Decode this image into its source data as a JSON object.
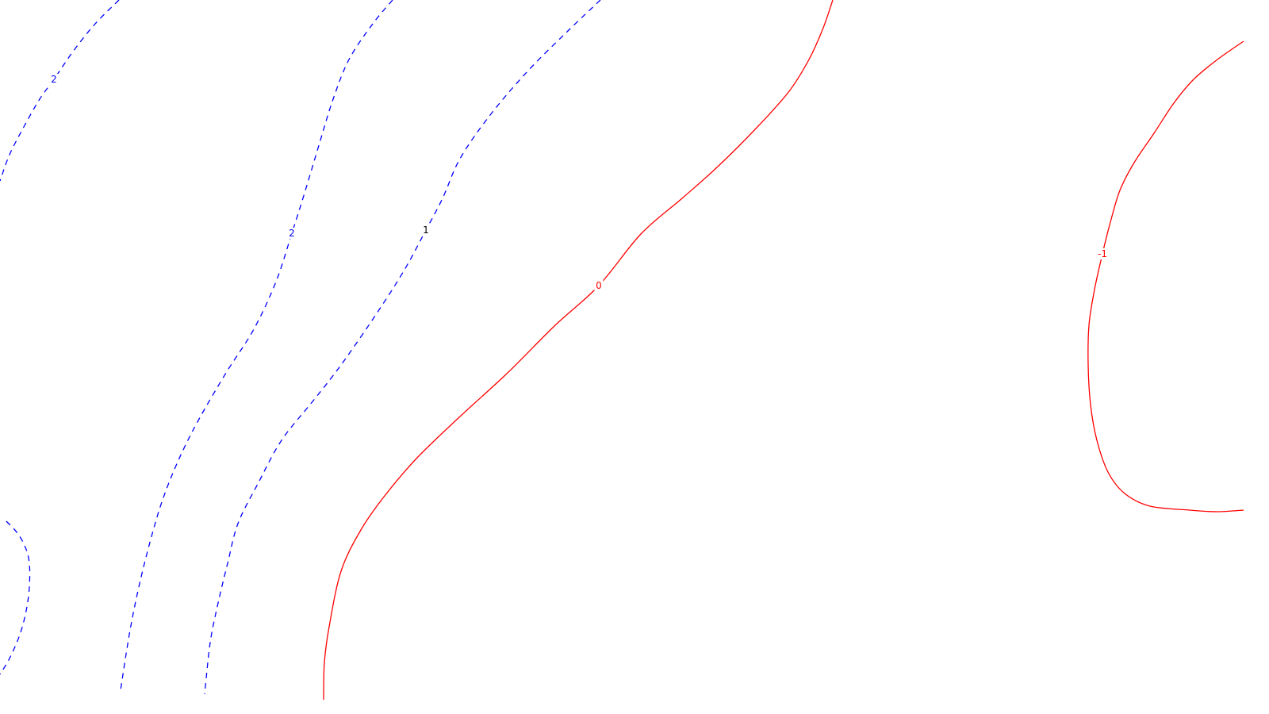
{
  "chart_data": {
    "type": "contour",
    "title": "",
    "xlabel": "",
    "ylabel": "",
    "grid": false,
    "legend": "none",
    "colors": {
      "positive": "#0000ff",
      "zero": "#ff0000",
      "negative": "#ff0000",
      "label_default": "#000000"
    },
    "levels": [
      {
        "level": 2,
        "label": "2",
        "style": "dashed",
        "color": "#0000ff",
        "label_color": "#0000ff",
        "curves": [
          [
            [
              150,
              0
            ],
            [
              120,
              30
            ],
            [
              92,
              65
            ],
            [
              68,
              100
            ],
            [
              50,
              125
            ],
            [
              30,
              160
            ],
            [
              12,
              195
            ],
            [
              0,
              228
            ]
          ],
          [
            [
              8,
              657
            ],
            [
              22,
              672
            ],
            [
              32,
              690
            ],
            [
              37,
              710
            ],
            [
              37,
              740
            ],
            [
              33,
              770
            ],
            [
              25,
              800
            ],
            [
              12,
              830
            ],
            [
              0,
              850
            ]
          ]
        ]
      },
      {
        "level": 2,
        "label": "2",
        "style": "dashed",
        "color": "#0000ff",
        "label_color": "#0000ff",
        "curves": [
          [
            [
              495,
              0
            ],
            [
              470,
              30
            ],
            [
              440,
              75
            ],
            [
              420,
              125
            ],
            [
              403,
              180
            ],
            [
              385,
              240
            ],
            [
              368,
              294
            ],
            [
              348,
              355
            ],
            [
              320,
              415
            ],
            [
              285,
              470
            ],
            [
              250,
              530
            ],
            [
              225,
              580
            ],
            [
              205,
              630
            ],
            [
              190,
              680
            ],
            [
              175,
              740
            ],
            [
              163,
              800
            ],
            [
              152,
              870
            ]
          ]
        ]
      },
      {
        "level": 1,
        "label": "1",
        "style": "dashed",
        "color": "#0000ff",
        "label_color": "#000000",
        "curves": [
          [
            [
              757,
              0
            ],
            [
              715,
              40
            ],
            [
              665,
              90
            ],
            [
              618,
              145
            ],
            [
              580,
              200
            ],
            [
              558,
              250
            ],
            [
              537,
              290
            ],
            [
              510,
              340
            ],
            [
              475,
              395
            ],
            [
              430,
              460
            ],
            [
              395,
              505
            ],
            [
              355,
              555
            ],
            [
              325,
              610
            ],
            [
              300,
              660
            ],
            [
              287,
              710
            ],
            [
              275,
              760
            ],
            [
              265,
              810
            ],
            [
              258,
              875
            ]
          ]
        ]
      },
      {
        "level": 0,
        "label": "0",
        "style": "solid",
        "color": "#ff0000",
        "label_color": "#ff0000",
        "curves": [
          [
            [
              1050,
              0
            ],
            [
              1038,
              35
            ],
            [
              1020,
              75
            ],
            [
              995,
              115
            ],
            [
              955,
              160
            ],
            [
              905,
              210
            ],
            [
              860,
              250
            ],
            [
              808,
              295
            ],
            [
              755,
              360
            ],
            [
              700,
              410
            ],
            [
              640,
              470
            ],
            [
              580,
              525
            ],
            [
              525,
              578
            ],
            [
              485,
              625
            ],
            [
              455,
              668
            ],
            [
              430,
              720
            ],
            [
              415,
              790
            ],
            [
              409,
              835
            ],
            [
              408,
              882
            ]
          ]
        ]
      },
      {
        "level": -1,
        "label": "-1",
        "style": "solid",
        "color": "#ff0000",
        "label_color": "#ff0000",
        "curves": [
          [
            [
              1568,
              52
            ],
            [
              1535,
              75
            ],
            [
              1505,
              100
            ],
            [
              1480,
              130
            ],
            [
              1455,
              168
            ],
            [
              1430,
              205
            ],
            [
              1412,
              240
            ],
            [
              1400,
              280
            ],
            [
              1390,
              320
            ],
            [
              1380,
              365
            ],
            [
              1373,
              410
            ],
            [
              1372,
              460
            ],
            [
              1375,
              510
            ],
            [
              1383,
              555
            ],
            [
              1397,
              595
            ],
            [
              1418,
              622
            ],
            [
              1450,
              638
            ],
            [
              1500,
              643
            ],
            [
              1535,
              645
            ],
            [
              1568,
              643
            ]
          ]
        ]
      }
    ],
    "labels": [
      {
        "text": "2",
        "level": 2,
        "at": [
          68,
          100
        ],
        "color": "#0000ff"
      },
      {
        "text": "2",
        "level": 2,
        "at": [
          368,
          294
        ],
        "color": "#0000ff"
      },
      {
        "text": "1",
        "level": 1,
        "at": [
          537,
          290
        ],
        "color": "#000000"
      },
      {
        "text": "0",
        "level": 0,
        "at": [
          755,
          360
        ],
        "color": "#ff0000"
      },
      {
        "text": "-1",
        "level": -1,
        "at": [
          1390,
          320
        ],
        "color": "#ff0000"
      }
    ]
  }
}
